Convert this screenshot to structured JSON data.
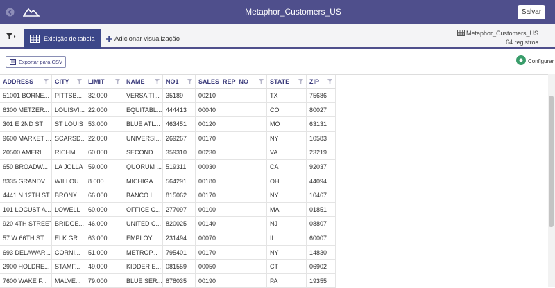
{
  "topbar": {
    "title": "Metaphor_Customers_US",
    "save_button": "Salvar"
  },
  "toolbar": {
    "active_tab": "Exibição de tabela",
    "add_tab": "Adicionar visualização",
    "dataset_name": "Metaphor_Customers_US",
    "record_count": "64 registros"
  },
  "actions": {
    "export": "Exportar para CSV",
    "configure": "Configurar"
  },
  "table": {
    "columns": [
      "ADDRESS",
      "CITY",
      "LIMIT",
      "NAME",
      "NO1",
      "SALES_REP_NO",
      "STATE",
      "ZIP"
    ],
    "rows": [
      [
        "51001 BORNE...",
        "PITTSB...",
        "32.000",
        "VERSA TI...",
        "35189",
        "00210",
        "TX",
        "75686"
      ],
      [
        "6300 METZER...",
        "LOUISVI...",
        "22.000",
        "EQUITABL...",
        "444413",
        "00040",
        "CO",
        "80027"
      ],
      [
        "301 E 2ND ST",
        "ST LOUIS",
        "53.000",
        "BLUE ATL...",
        "463451",
        "00120",
        "MO",
        "63131"
      ],
      [
        "9600 MARKET ...",
        "SCARSD...",
        "22.000",
        "UNIVERSI...",
        "269267",
        "00170",
        "NY",
        "10583"
      ],
      [
        "20500 AMERI...",
        "RICHM...",
        "60.000",
        "SECOND ...",
        "359310",
        "00230",
        "VA",
        "23219"
      ],
      [
        "650 BROADW...",
        "LA JOLLA",
        "59.000",
        "QUORUM ...",
        "519311",
        "00030",
        "CA",
        "92037"
      ],
      [
        "8335 GRANDV...",
        "WILLOU...",
        "8.000",
        "MICHIGA...",
        "564291",
        "00180",
        "OH",
        "44094"
      ],
      [
        "4441 N 12TH ST",
        "BRONX",
        "66.000",
        "BANCO I...",
        "815062",
        "00170",
        "NY",
        "10467"
      ],
      [
        "101 LOCUST A...",
        "LOWELL",
        "60.000",
        "OFFICE C...",
        "277097",
        "00100",
        "MA",
        "01851"
      ],
      [
        "920 4TH STREET",
        "BRIDGE...",
        "46.000",
        "UNITED C...",
        "820025",
        "00140",
        "NJ",
        "08807"
      ],
      [
        "57 W 66TH ST",
        "ELK GR...",
        "63.000",
        "EMPLOY...",
        "231494",
        "00070",
        "IL",
        "60007"
      ],
      [
        "693 DELAWAR...",
        "CORNI...",
        "51.000",
        "METROP...",
        "795401",
        "00170",
        "NY",
        "14830"
      ],
      [
        "2900 HOLDRE...",
        "STAMF...",
        "49.000",
        "KIDDER E...",
        "081559",
        "00050",
        "CT",
        "06902"
      ],
      [
        "7600 WAKE F...",
        "MALVE...",
        "79.000",
        "BLUE SER...",
        "878035",
        "00190",
        "PA",
        "19355"
      ]
    ]
  }
}
